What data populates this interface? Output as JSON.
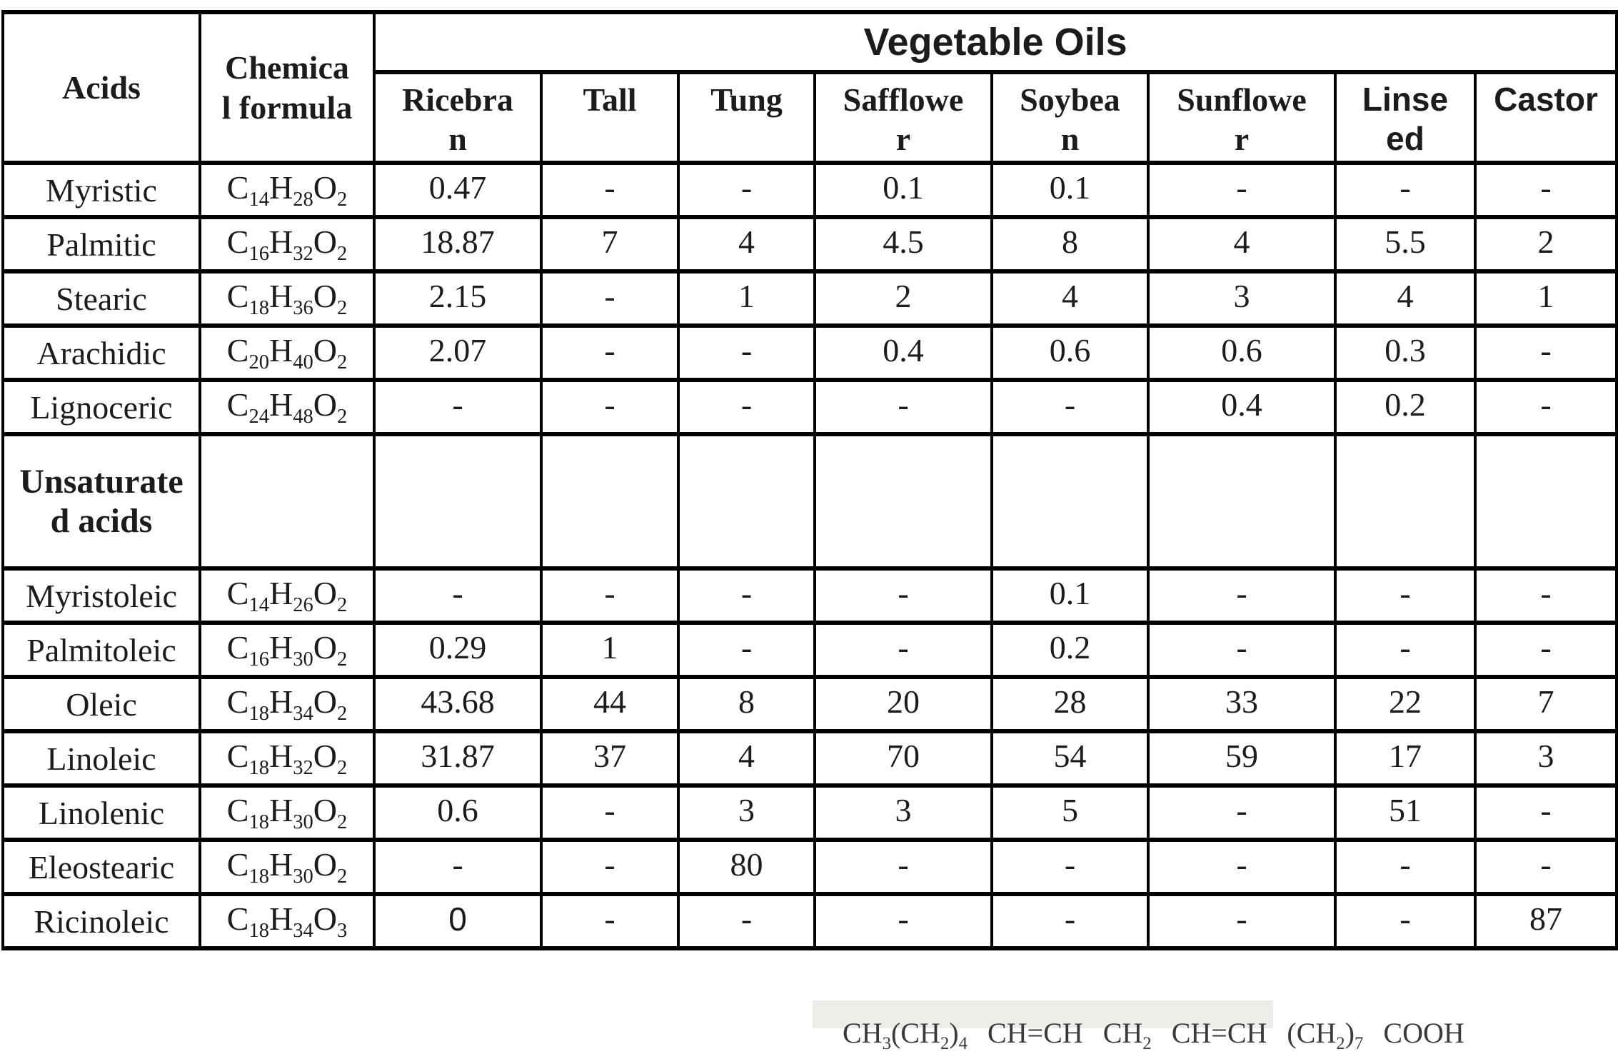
{
  "table": {
    "group_header": "Vegetable Oils",
    "headers": {
      "acids": "Acids",
      "formula": "Chemical formula",
      "oils": [
        "Ricebran",
        "Tall",
        "Tung",
        "Safflower",
        "Soybean",
        "Sunflower",
        "Linseed",
        "Castor"
      ]
    },
    "section_label": "Unsaturated acids",
    "saturated": [
      {
        "acid": "Myristic",
        "formula": "C14H28O2",
        "values": [
          "0.47",
          "-",
          "-",
          "0.1",
          "0.1",
          "-",
          "-",
          "-"
        ]
      },
      {
        "acid": "Palmitic",
        "formula": "C16H32O2",
        "values": [
          "18.87",
          "7",
          "4",
          "4.5",
          "8",
          "4",
          "5.5",
          "2"
        ]
      },
      {
        "acid": "Stearic",
        "formula": "C18H36O2",
        "values": [
          "2.15",
          "-",
          "1",
          "2",
          "4",
          "3",
          "4",
          "1"
        ]
      },
      {
        "acid": "Arachidic",
        "formula": "C20H40O2",
        "values": [
          "2.07",
          "-",
          "-",
          "0.4",
          "0.6",
          "0.6",
          "0.3",
          "-"
        ]
      },
      {
        "acid": "Lignoceric",
        "formula": "C24H48O2",
        "values": [
          "-",
          "-",
          "-",
          "-",
          "-",
          "0.4",
          "0.2",
          "-"
        ]
      }
    ],
    "unsaturated": [
      {
        "acid": "Myristoleic",
        "formula": "C14H26O2",
        "values": [
          "-",
          "-",
          "-",
          "-",
          "0.1",
          "-",
          "-",
          "-"
        ]
      },
      {
        "acid": "Palmitoleic",
        "formula": "C16H30O2",
        "values": [
          "0.29",
          "1",
          "-",
          "-",
          "0.2",
          "-",
          "-",
          "-"
        ]
      },
      {
        "acid": "Oleic",
        "formula": "C18H34O2",
        "values": [
          "43.68",
          "44",
          "8",
          "20",
          "28",
          "33",
          "22",
          "7"
        ]
      },
      {
        "acid": "Linoleic",
        "formula": "C18H32O2",
        "values": [
          "31.87",
          "37",
          "4",
          "70",
          "54",
          "59",
          "17",
          "3"
        ]
      },
      {
        "acid": "Linolenic",
        "formula": "C18H30O2",
        "values": [
          "0.6",
          "-",
          "3",
          "3",
          "5",
          "-",
          "51",
          "-"
        ]
      },
      {
        "acid": "Eleostearic",
        "formula": "C18H30O2",
        "values": [
          "-",
          "-",
          "80",
          "-",
          "-",
          "-",
          "-",
          "-"
        ]
      },
      {
        "acid": "Ricinoleic",
        "formula": "C18H34O3",
        "values": [
          "0",
          "-",
          "-",
          "-",
          "-",
          "-",
          "-",
          "87"
        ]
      }
    ]
  },
  "scan_fragment": {
    "text": "CH3(CH2)4 CH=CH CH2 CH=CH (CH2)7 COOH"
  },
  "colors": {
    "border": "#000000",
    "text": "#1c1c1c",
    "scan_strip_bg": "#edeee9"
  }
}
